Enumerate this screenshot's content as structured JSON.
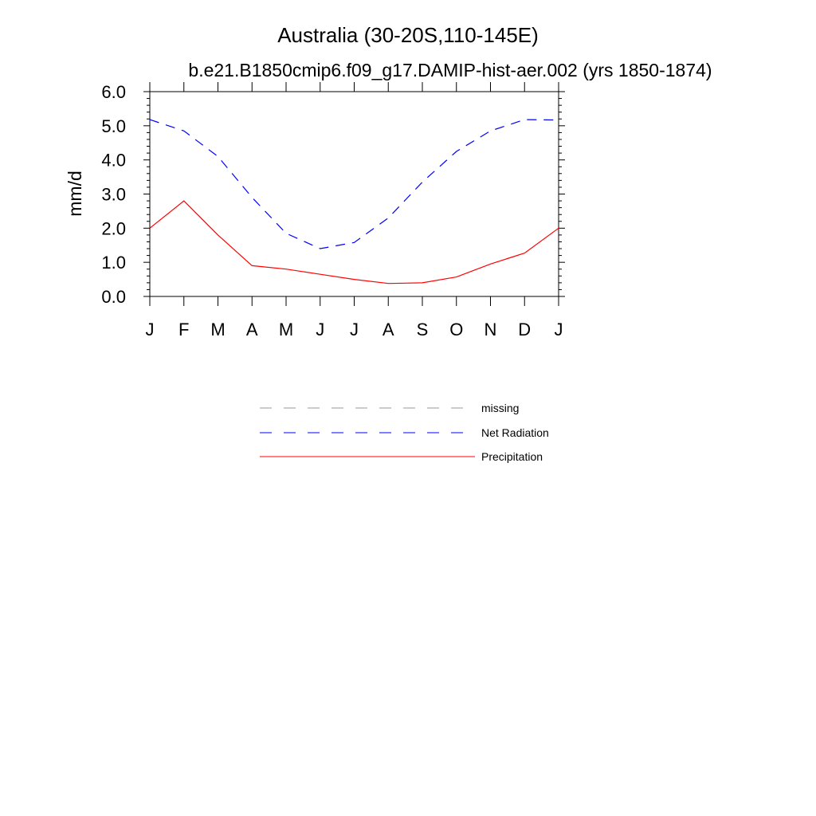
{
  "chart_data": {
    "type": "line",
    "title": "Australia (30-20S,110-145E)",
    "subtitle": "b.e21.B1850cmip6.f09_g17.DAMIP-hist-aer.002 (yrs 1850-1874)",
    "xlabel": "",
    "ylabel": "mm/d",
    "categories": [
      "J",
      "F",
      "M",
      "A",
      "M",
      "J",
      "J",
      "A",
      "S",
      "O",
      "N",
      "D",
      "J"
    ],
    "ylim": [
      0,
      6
    ],
    "yticks": [
      "0.0",
      "1.0",
      "2.0",
      "3.0",
      "4.0",
      "5.0",
      "6.0"
    ],
    "grid": false,
    "legend_position": "bottom",
    "series": [
      {
        "name": "Net Radiation",
        "color": "#0000ff",
        "dash": "dashed",
        "values": [
          5.18,
          4.85,
          4.1,
          2.9,
          1.85,
          1.4,
          1.58,
          2.3,
          3.35,
          4.25,
          4.85,
          5.18,
          5.17
        ]
      },
      {
        "name": "Precipitation",
        "color": "#ff0000",
        "dash": "solid",
        "values": [
          2.0,
          2.8,
          1.8,
          0.9,
          0.8,
          0.65,
          0.5,
          0.38,
          0.4,
          0.57,
          0.95,
          1.27,
          2.0
        ]
      }
    ],
    "legend": [
      {
        "label": "missing",
        "color": "#999999",
        "dash": "dashed"
      },
      {
        "label": "Net Radiation",
        "color": "#0000ff",
        "dash": "dashed"
      },
      {
        "label": "Precipitation",
        "color": "#ff0000",
        "dash": "solid"
      }
    ]
  }
}
